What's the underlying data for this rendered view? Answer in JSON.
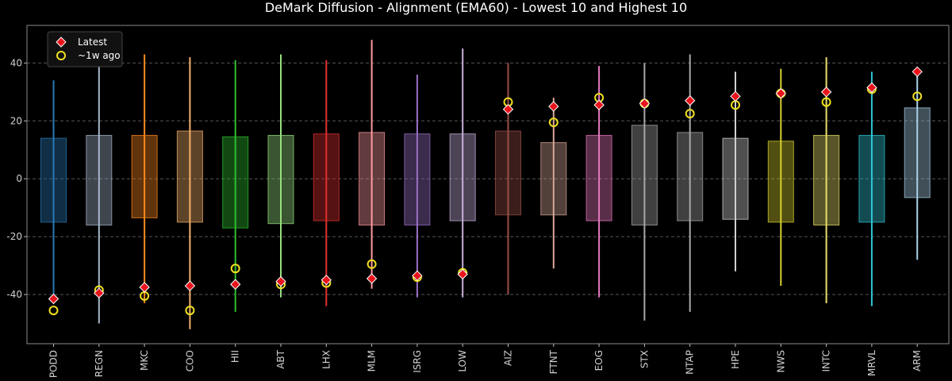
{
  "chart_data": {
    "type": "box-range",
    "title": "DeMark Diffusion - Alignment (EMA60) - Lowest 10 and Highest 10",
    "xlabel": "",
    "ylabel": "",
    "ylim": [
      -57,
      53
    ],
    "yticks": [
      -40,
      -20,
      0,
      20,
      40
    ],
    "grid": true,
    "legend_position": "top-left",
    "legend": [
      {
        "label": "Latest",
        "marker": "diamond",
        "color": "#e8141c"
      },
      {
        "label": "~1w ago",
        "marker": "circle",
        "color": "#f0e020"
      }
    ],
    "categories": [
      "PODD",
      "REGN",
      "MKC",
      "COO",
      "HII",
      "ABT",
      "LHX",
      "MLM",
      "ISRG",
      "LOW",
      "AIZ",
      "FTNT",
      "EOG",
      "STX",
      "NTAP",
      "HPE",
      "NWS",
      "INTC",
      "MRVL",
      "ARM"
    ],
    "colors": [
      "#2a7ab5",
      "#a8b8cc",
      "#ff8a1e",
      "#f4b06a",
      "#30c030",
      "#98e080",
      "#e23030",
      "#ff9aa0",
      "#9a70c8",
      "#c8b0dc",
      "#9a5048",
      "#d8a898",
      "#e878c0",
      "#a8a8a8",
      "#a8a8a8",
      "#d0d0d0",
      "#d8d030",
      "#e8e068",
      "#30c8d8",
      "#a8d0e8"
    ],
    "whisker_low": [
      -43,
      -50,
      -43,
      -52,
      -46,
      -41,
      -44,
      -38,
      -41,
      -41,
      -40,
      -31,
      -41,
      -49,
      -46,
      -32,
      -37,
      -43,
      -44,
      -28
    ],
    "whisker_high": [
      34,
      43,
      43,
      42,
      41,
      43,
      41,
      48,
      36,
      45,
      40,
      28,
      39,
      40,
      43,
      37,
      38,
      42,
      37,
      38
    ],
    "box_low": [
      -15,
      -16,
      -13.5,
      -15,
      -17,
      -15.5,
      -14.5,
      -16,
      -16,
      -14.5,
      -12.5,
      -12.5,
      -14.5,
      -16,
      -14.5,
      -14,
      -15,
      -16,
      -15,
      -6.5
    ],
    "box_high": [
      14,
      15,
      15,
      16.5,
      14.5,
      15,
      15.5,
      16,
      15.5,
      15.5,
      16.5,
      12.5,
      15,
      18.5,
      16,
      14,
      13,
      15,
      15,
      24.5
    ],
    "latest": [
      -41.5,
      -39.5,
      -37.5,
      -37,
      -36.5,
      -35.5,
      -35,
      -34.5,
      -33.5,
      -33,
      24,
      25,
      25.5,
      26,
      27,
      28.5,
      29.5,
      30,
      31.5,
      37
    ],
    "week_ago": [
      -45.5,
      -38.5,
      -40.5,
      -45.5,
      -31,
      -36.5,
      -36,
      -29.5,
      -34,
      -32.5,
      26.5,
      19.5,
      28,
      26,
      22.5,
      25.5,
      29.5,
      26.5,
      31,
      28.5
    ]
  }
}
